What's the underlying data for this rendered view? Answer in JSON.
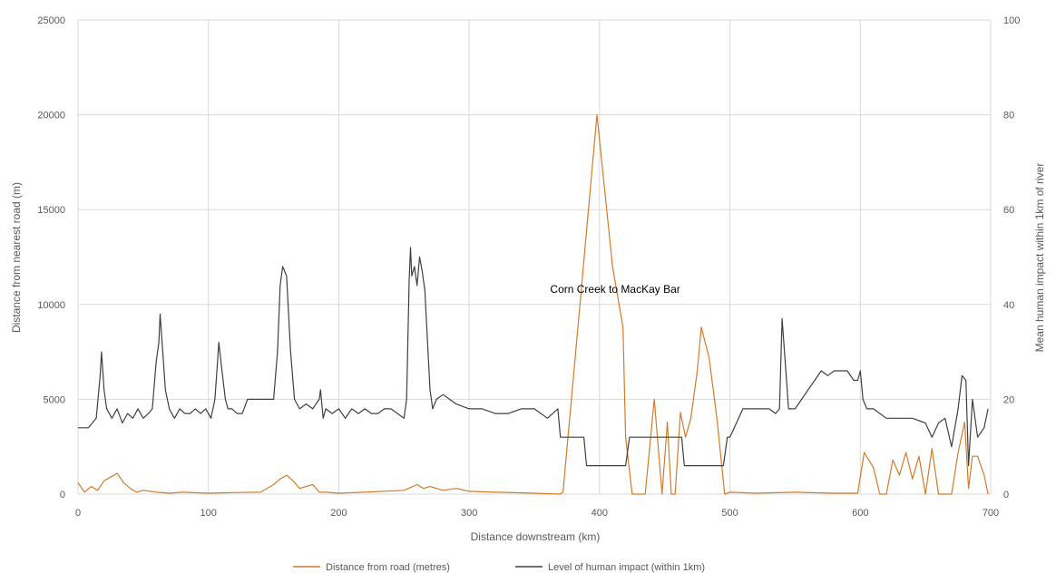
{
  "chart_data": {
    "type": "line",
    "xlabel": "Distance downstream (km)",
    "ylabel": "Distance from nearest road (m)",
    "y2label": "Mean human impact within 1km of river",
    "xlim": [
      0,
      700
    ],
    "ylim": [
      0,
      25000
    ],
    "y2lim": [
      0,
      100
    ],
    "x_ticks": [
      0,
      100,
      200,
      300,
      400,
      500,
      600,
      700
    ],
    "y_ticks": [
      0,
      5000,
      10000,
      15000,
      20000,
      25000
    ],
    "y2_ticks": [
      0,
      20,
      40,
      60,
      80,
      100
    ],
    "grid": true,
    "legend_position": "bottom",
    "annotation": {
      "text": "Corn Creek to MacKay Bar",
      "x": 412,
      "y": 10600
    },
    "colors": {
      "road": "#d07c2c",
      "impact": "#404040",
      "grid": "#d9d9d9",
      "text": "#595959"
    },
    "series": [
      {
        "name": "Distance from road (metres)",
        "axis": "left",
        "x": [
          0,
          5,
          10,
          15,
          20,
          25,
          30,
          35,
          40,
          45,
          50,
          60,
          70,
          80,
          100,
          120,
          140,
          150,
          155,
          160,
          165,
          170,
          180,
          185,
          190,
          200,
          220,
          250,
          260,
          265,
          270,
          280,
          290,
          300,
          320,
          350,
          370,
          372,
          385,
          398,
          410,
          418,
          420,
          425,
          435,
          442,
          448,
          452,
          455,
          458,
          462,
          466,
          470,
          475,
          478,
          484,
          490,
          496,
          500,
          520,
          550,
          580,
          598,
          603,
          610,
          615,
          620,
          625,
          630,
          635,
          640,
          645,
          650,
          655,
          660,
          670,
          675,
          680,
          683,
          686,
          690,
          695,
          698
        ],
        "values": [
          600,
          100,
          400,
          200,
          700,
          900,
          1100,
          600,
          300,
          100,
          200,
          100,
          50,
          100,
          50,
          80,
          100,
          500,
          800,
          1000,
          700,
          300,
          500,
          100,
          100,
          50,
          100,
          200,
          500,
          300,
          400,
          200,
          300,
          150,
          100,
          50,
          0,
          100,
          10000,
          20000,
          12000,
          8800,
          3000,
          0,
          0,
          5000,
          0,
          3800,
          0,
          0,
          4300,
          3000,
          4000,
          6500,
          8800,
          7200,
          4000,
          0,
          100,
          50,
          100,
          50,
          50,
          2200,
          1400,
          0,
          0,
          1800,
          1000,
          2200,
          800,
          2000,
          0,
          2400,
          0,
          0,
          2200,
          3800,
          300,
          2000,
          2000,
          1000,
          0
        ]
      },
      {
        "name": "Level of human impact (within 1km)",
        "axis": "right",
        "x": [
          0,
          8,
          14,
          17,
          18,
          20,
          22,
          26,
          30,
          34,
          38,
          42,
          46,
          50,
          54,
          57,
          60,
          62,
          63,
          65,
          67,
          70,
          74,
          78,
          82,
          86,
          90,
          94,
          98,
          102,
          105,
          107,
          108,
          110,
          113,
          115,
          118,
          122,
          126,
          130,
          135,
          140,
          145,
          150,
          153,
          155,
          157,
          160,
          163,
          166,
          170,
          175,
          180,
          185,
          186,
          188,
          190,
          195,
          200,
          205,
          210,
          215,
          220,
          225,
          230,
          235,
          240,
          245,
          250,
          252,
          254,
          255,
          256,
          258,
          260,
          262,
          264,
          266,
          270,
          272,
          275,
          280,
          290,
          300,
          310,
          320,
          330,
          340,
          350,
          360,
          368,
          370,
          380,
          388,
          390,
          420,
          423,
          425,
          435,
          460,
          463,
          465,
          495,
          498,
          500,
          510,
          520,
          530,
          535,
          538,
          540,
          545,
          550,
          555,
          560,
          565,
          570,
          575,
          580,
          585,
          590,
          595,
          598,
          600,
          602,
          605,
          610,
          620,
          630,
          640,
          650,
          655,
          660,
          665,
          670,
          675,
          678,
          681,
          683,
          686,
          690,
          695,
          698
        ],
        "values": [
          14,
          14,
          16,
          25,
          30,
          22,
          18,
          16,
          18,
          15,
          17,
          16,
          18,
          16,
          17,
          18,
          28,
          32,
          38,
          30,
          22,
          18,
          16,
          18,
          17,
          17,
          18,
          17,
          18,
          16,
          20,
          28,
          32,
          27,
          20,
          18,
          18,
          17,
          17,
          20,
          20,
          20,
          20,
          20,
          30,
          44,
          48,
          46,
          30,
          20,
          18,
          19,
          18,
          20,
          22,
          16,
          18,
          17,
          18,
          16,
          18,
          17,
          18,
          17,
          17,
          18,
          18,
          17,
          16,
          20,
          45,
          52,
          46,
          48,
          44,
          50,
          47,
          43,
          22,
          18,
          20,
          21,
          19,
          18,
          18,
          17,
          17,
          18,
          18,
          16,
          18,
          12,
          12,
          12,
          6,
          6,
          12,
          12,
          12,
          12,
          12,
          6,
          6,
          12,
          12,
          18,
          18,
          18,
          17,
          18,
          37,
          18,
          18,
          20,
          22,
          24,
          26,
          25,
          26,
          26,
          26,
          24,
          24,
          26,
          20,
          18,
          18,
          16,
          16,
          16,
          15,
          12,
          15,
          16,
          10,
          18,
          25,
          24,
          6,
          20,
          12,
          14,
          18
        ]
      }
    ]
  }
}
